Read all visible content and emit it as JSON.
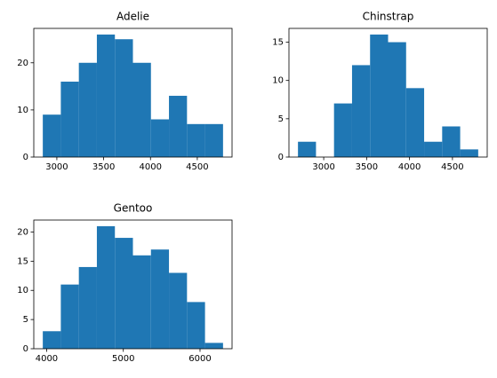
{
  "chart_data": [
    {
      "type": "histogram",
      "title": "Adelie",
      "color": "#1f77b4",
      "bins": [
        2850,
        3042.5,
        3235,
        3427.5,
        3620,
        3812.5,
        4005,
        4197.5,
        4390,
        4582.5,
        4775
      ],
      "values": [
        9,
        16,
        20,
        26,
        25,
        20,
        8,
        13,
        7,
        7
      ],
      "xlim": [
        2753.75,
        4871.25
      ],
      "xticks": [
        3000,
        3500,
        4000,
        4500
      ],
      "ylim": [
        0,
        27.3
      ],
      "yticks": [
        0,
        10,
        20
      ]
    },
    {
      "type": "histogram",
      "title": "Chinstrap",
      "color": "#1f77b4",
      "bins": [
        2700,
        2910,
        3120,
        3330,
        3540,
        3750,
        3960,
        4170,
        4380,
        4590,
        4800
      ],
      "values": [
        2,
        0,
        7,
        12,
        16,
        15,
        9,
        2,
        4,
        1
      ],
      "xlim": [
        2595,
        4905
      ],
      "xticks": [
        3000,
        3500,
        4000,
        4500
      ],
      "ylim": [
        0,
        16.8
      ],
      "yticks": [
        0,
        5,
        10,
        15
      ]
    },
    {
      "type": "histogram",
      "title": "Gentoo",
      "color": "#1f77b4",
      "bins": [
        3950,
        4185,
        4420,
        4655,
        4890,
        5125,
        5360,
        5595,
        5830,
        6065,
        6300
      ],
      "values": [
        3,
        11,
        14,
        21,
        19,
        16,
        17,
        13,
        8,
        1
      ],
      "xlim": [
        3832.5,
        6417.5
      ],
      "xticks": [
        4000,
        5000,
        6000
      ],
      "ylim": [
        0,
        22.05
      ],
      "yticks": [
        0,
        5,
        10,
        15,
        20
      ]
    }
  ]
}
